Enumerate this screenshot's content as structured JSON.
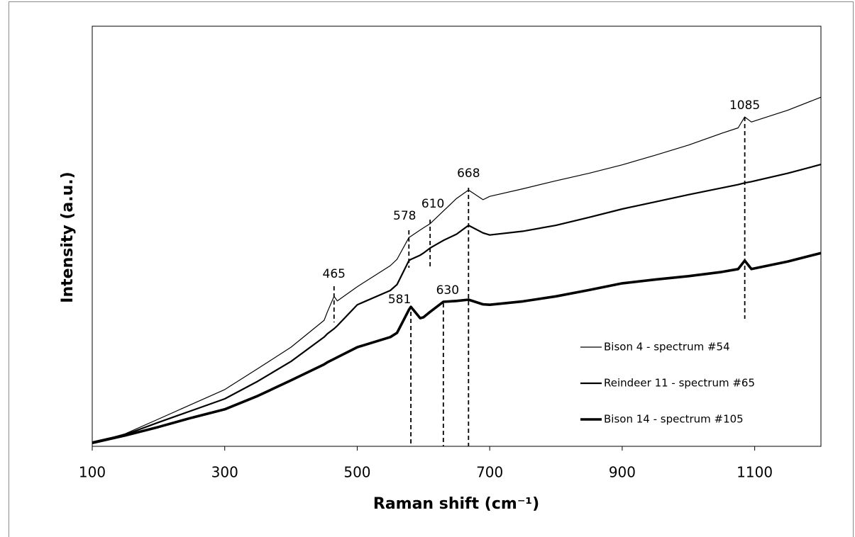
{
  "chart_data": {
    "type": "line",
    "x_label": "Raman shift (cm⁻¹)",
    "y_label": "Intensity (a.u.)",
    "x": [
      100,
      150,
      200,
      250,
      300,
      350,
      400,
      450,
      455,
      465,
      470,
      500,
      550,
      560,
      578,
      581,
      595,
      600,
      610,
      630,
      650,
      668,
      690,
      700,
      750,
      800,
      850,
      900,
      950,
      1000,
      1050,
      1075,
      1085,
      1095,
      1150,
      1200
    ],
    "series": [
      {
        "name": "Bison 4 - spectrum #54",
        "color": "#000000",
        "values": [
          0.8,
          3,
          6.5,
          10,
          13.5,
          18.5,
          23.6,
          30,
          32,
          35.7,
          34.6,
          38,
          43,
          44.5,
          49.7,
          50,
          51.5,
          52,
          53,
          56,
          59,
          61,
          58.7,
          59.5,
          61.3,
          63.2,
          65,
          67,
          69.3,
          71.7,
          74.5,
          75.8,
          78.4,
          77.2,
          80,
          83.1
        ]
      },
      {
        "name": "Reindeer 11 - spectrum #65",
        "color": "#000000",
        "values": [
          1,
          2.8,
          5.7,
          8.5,
          11.3,
          15.5,
          20.2,
          26,
          26.8,
          28,
          28.7,
          33.7,
          37.1,
          38.5,
          44.2,
          44.5,
          45.5,
          46,
          47.2,
          49,
          50.5,
          52.6,
          50.8,
          50.3,
          51.2,
          52.6,
          54.5,
          56.5,
          58.2,
          59.9,
          61.5,
          62.3,
          62.7,
          63,
          65,
          67.1
        ]
      },
      {
        "name": "Bison 14 - spectrum #105",
        "color": "#000000",
        "values": [
          0.8,
          2.6,
          4.6,
          6.8,
          8.8,
          12,
          15.7,
          19.5,
          20,
          20.8,
          21.2,
          23.6,
          26,
          27,
          32.5,
          33.2,
          30.5,
          30.7,
          32,
          34.4,
          34.6,
          34.9,
          33.8,
          33.7,
          34.5,
          35.7,
          37.2,
          38.8,
          39.7,
          40.5,
          41.5,
          42.2,
          44.2,
          42.2,
          44,
          46
        ]
      }
    ],
    "annotations": [
      465,
      578,
      610,
      668,
      1085,
      581,
      630
    ],
    "xlim": [
      100,
      1200
    ],
    "xticks": [
      100,
      300,
      500,
      700,
      900,
      1100
    ],
    "ylim": [
      0,
      100
    ],
    "legend": "lower right"
  }
}
